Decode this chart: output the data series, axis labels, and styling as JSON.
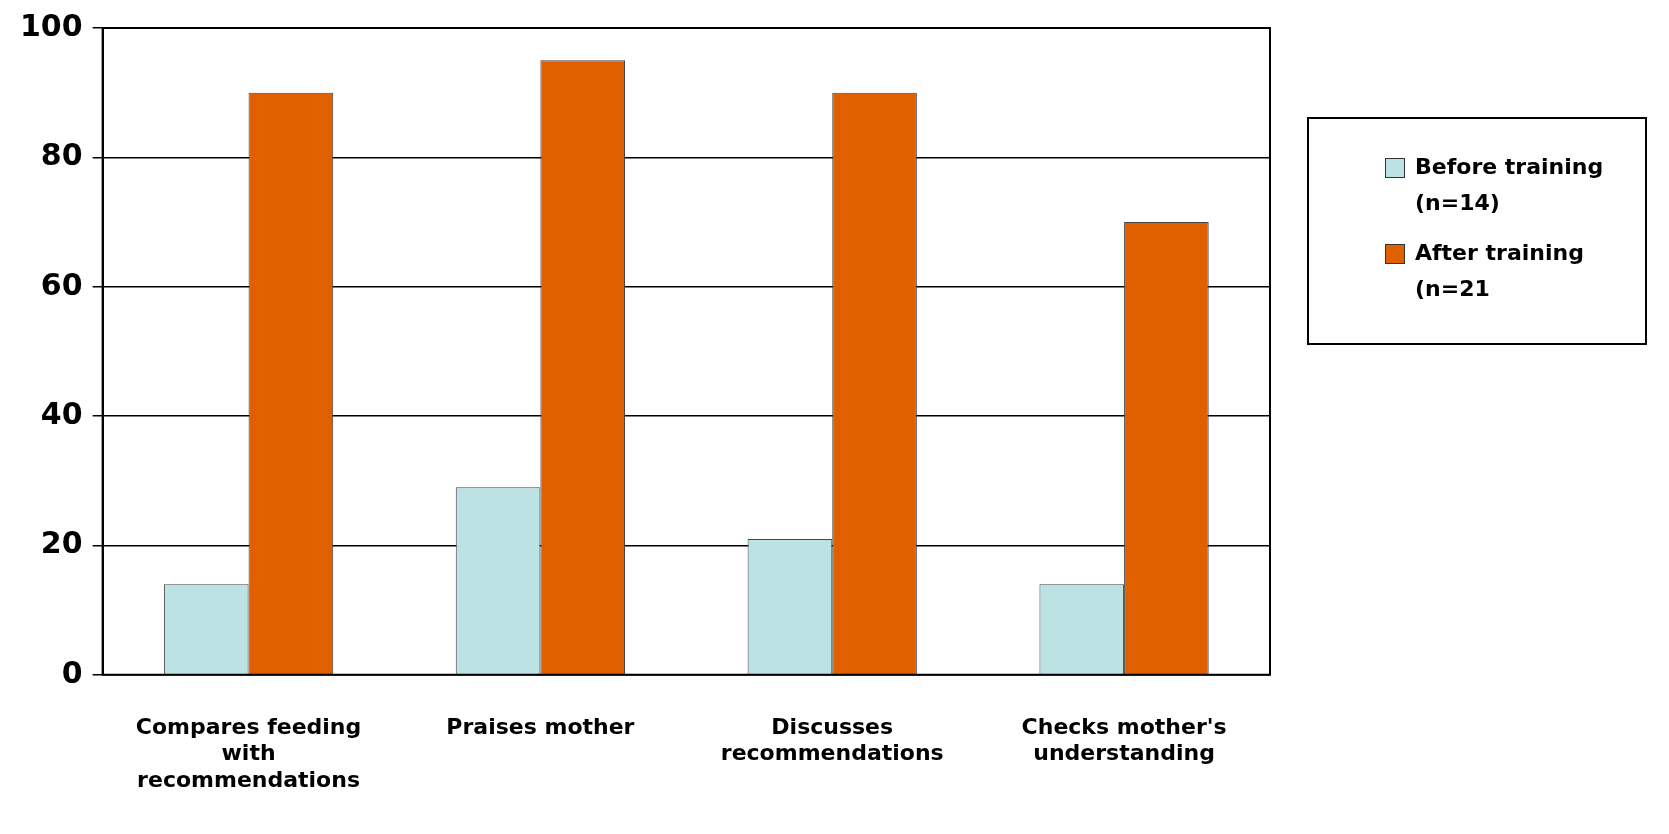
{
  "chart_data": {
    "type": "bar",
    "categories": [
      "Compares feeding with recommendations",
      "Praises mother",
      "Discusses recommendations",
      "Checks mother's understanding"
    ],
    "series": [
      {
        "name": "Before training (n=14)",
        "color": "#bde2e4",
        "values": [
          14,
          29,
          21,
          14
        ]
      },
      {
        "name": "After training (n=21",
        "color": "#e06000",
        "values": [
          90,
          95,
          90,
          70
        ]
      }
    ],
    "ylim": [
      0,
      100
    ],
    "yticks": [
      0,
      20,
      40,
      60,
      80,
      100
    ],
    "grid": "y",
    "legend": "right"
  }
}
